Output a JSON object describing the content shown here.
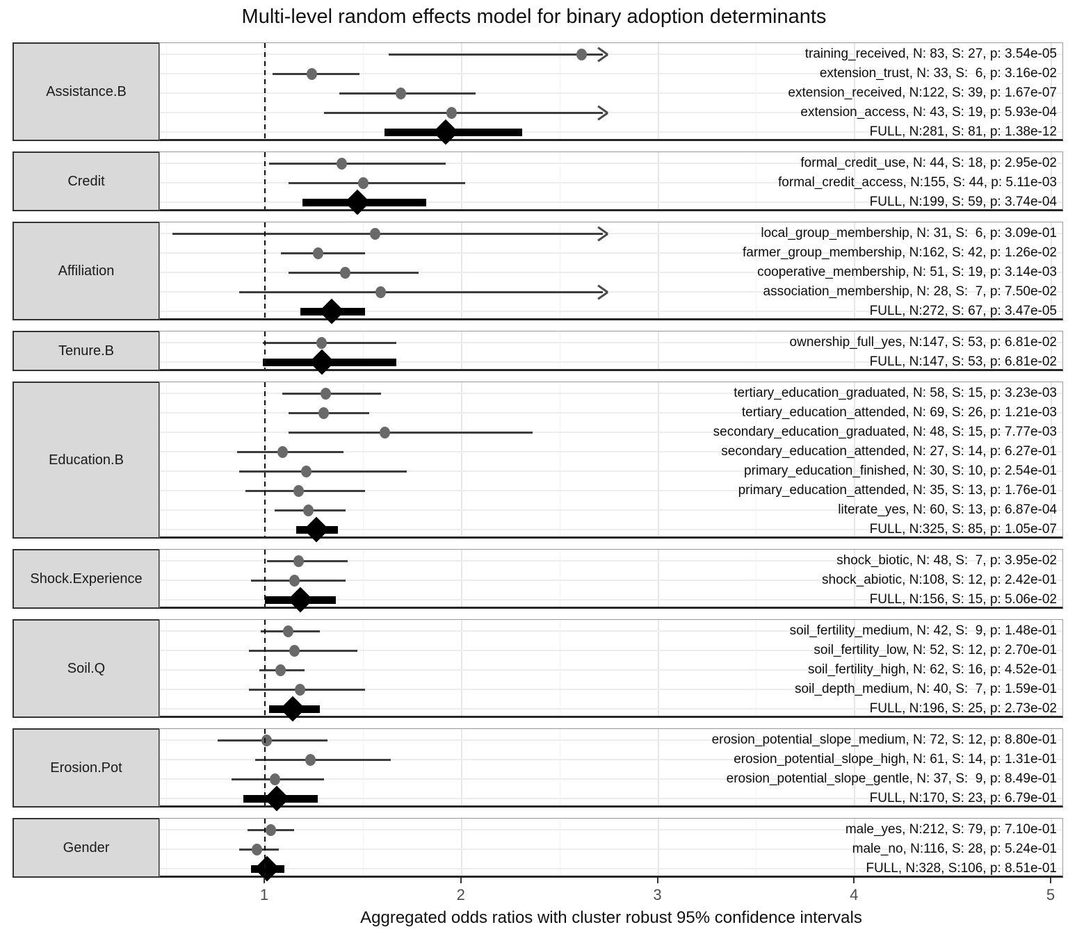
{
  "title": "Multi-level random effects model for binary adoption determinants",
  "xlabel": "Aggregated odds ratios with cluster robust 95% confidence intervals",
  "colors": {
    "point": "#696969",
    "ci_line": "#3d3d3d",
    "summary": "#000000",
    "strip_bg": "#d9d9d9",
    "grid": "#e7e7e7",
    "axis_text": "#4d4d4d"
  },
  "chart_data": {
    "type": "forest",
    "x_axis": {
      "ticks": [
        "1",
        "2",
        "3",
        "4",
        "5"
      ],
      "tick_values": [
        1,
        2,
        3,
        4,
        5
      ],
      "range": [
        0.47,
        5.06
      ],
      "reference_line": 1
    },
    "legend": "none",
    "grid": "on",
    "panels": [
      {
        "label": "Assistance.B",
        "rows": [
          {
            "label": "training_received, N: 83, S: 27, p: 3.54e-05",
            "or": 2.61,
            "lo": 1.63,
            "hi": 2.74,
            "arrow": true,
            "full": false
          },
          {
            "label": "extension_trust, N: 33, S:  6, p: 3.16e-02",
            "or": 1.24,
            "lo": 1.04,
            "hi": 1.48,
            "arrow": false,
            "full": false
          },
          {
            "label": "extension_received, N:122, S: 39, p: 1.67e-07",
            "or": 1.69,
            "lo": 1.38,
            "hi": 2.07,
            "arrow": false,
            "full": false
          },
          {
            "label": "extension_access, N: 43, S: 19, p: 5.93e-04",
            "or": 1.95,
            "lo": 1.3,
            "hi": 2.74,
            "arrow": true,
            "full": false
          },
          {
            "label": "FULL, N:281, S: 81, p: 1.38e-12",
            "or": 1.92,
            "lo": 1.61,
            "hi": 2.31,
            "arrow": false,
            "full": true
          }
        ]
      },
      {
        "label": "Credit",
        "rows": [
          {
            "label": "formal_credit_use, N: 44, S: 18, p: 2.95e-02",
            "or": 1.39,
            "lo": 1.02,
            "hi": 1.92,
            "arrow": false,
            "full": false
          },
          {
            "label": "formal_credit_access, N:155, S: 44, p: 5.11e-03",
            "or": 1.5,
            "lo": 1.12,
            "hi": 2.02,
            "arrow": false,
            "full": false
          },
          {
            "label": "FULL, N:199, S: 59, p: 3.74e-04",
            "or": 1.47,
            "lo": 1.19,
            "hi": 1.82,
            "arrow": false,
            "full": true
          }
        ]
      },
      {
        "label": "Affiliation",
        "rows": [
          {
            "label": "local_group_membership, N: 31, S:  6, p: 3.09e-01",
            "or": 1.56,
            "lo": 0.53,
            "hi": 2.74,
            "arrow": true,
            "full": false
          },
          {
            "label": "farmer_group_membership, N:162, S: 42, p: 1.26e-02",
            "or": 1.27,
            "lo": 1.08,
            "hi": 1.51,
            "arrow": false,
            "full": false
          },
          {
            "label": "cooperative_membership, N: 51, S: 19, p: 3.14e-03",
            "or": 1.41,
            "lo": 1.12,
            "hi": 1.78,
            "arrow": false,
            "full": false
          },
          {
            "label": "association_membership, N: 28, S:  7, p: 7.50e-02",
            "or": 1.59,
            "lo": 0.87,
            "hi": 2.74,
            "arrow": true,
            "full": false
          },
          {
            "label": "FULL, N:272, S: 67, p: 3.47e-05",
            "or": 1.34,
            "lo": 1.18,
            "hi": 1.51,
            "arrow": false,
            "full": true
          }
        ]
      },
      {
        "label": "Tenure.B",
        "rows": [
          {
            "label": "ownership_full_yes, N:147, S: 53, p: 6.81e-02",
            "or": 1.29,
            "lo": 0.99,
            "hi": 1.67,
            "arrow": false,
            "full": false
          },
          {
            "label": "FULL, N:147, S: 53, p: 6.81e-02",
            "or": 1.29,
            "lo": 0.99,
            "hi": 1.67,
            "arrow": false,
            "full": true
          }
        ]
      },
      {
        "label": "Education.B",
        "rows": [
          {
            "label": "tertiary_education_graduated, N: 58, S: 15, p: 3.23e-03",
            "or": 1.31,
            "lo": 1.09,
            "hi": 1.59,
            "arrow": false,
            "full": false
          },
          {
            "label": "tertiary_education_attended, N: 69, S: 26, p: 1.21e-03",
            "or": 1.3,
            "lo": 1.12,
            "hi": 1.53,
            "arrow": false,
            "full": false
          },
          {
            "label": "secondary_education_graduated, N: 48, S: 15, p: 7.77e-03",
            "or": 1.61,
            "lo": 1.12,
            "hi": 2.36,
            "arrow": false,
            "full": false
          },
          {
            "label": "secondary_education_attended, N: 27, S: 14, p: 6.27e-01",
            "or": 1.09,
            "lo": 0.86,
            "hi": 1.4,
            "arrow": false,
            "full": false
          },
          {
            "label": "primary_education_finished, N: 30, S: 10, p: 2.54e-01",
            "or": 1.21,
            "lo": 0.87,
            "hi": 1.72,
            "arrow": false,
            "full": false
          },
          {
            "label": "primary_education_attended, N: 35, S: 13, p: 1.76e-01",
            "or": 1.17,
            "lo": 0.9,
            "hi": 1.51,
            "arrow": false,
            "full": false
          },
          {
            "label": "literate_yes, N: 60, S: 13, p: 6.87e-04",
            "or": 1.22,
            "lo": 1.05,
            "hi": 1.41,
            "arrow": false,
            "full": false
          },
          {
            "label": "FULL, N:325, S: 85, p: 1.05e-07",
            "or": 1.26,
            "lo": 1.16,
            "hi": 1.37,
            "arrow": false,
            "full": true
          }
        ]
      },
      {
        "label": "Shock.Experience",
        "rows": [
          {
            "label": "shock_biotic, N: 48, S:  7, p: 3.95e-02",
            "or": 1.17,
            "lo": 1.01,
            "hi": 1.42,
            "arrow": false,
            "full": false
          },
          {
            "label": "shock_abiotic, N:108, S: 12, p: 2.42e-01",
            "or": 1.15,
            "lo": 0.93,
            "hi": 1.41,
            "arrow": false,
            "full": false
          },
          {
            "label": "FULL, N:156, S: 15, p: 5.06e-02",
            "or": 1.18,
            "lo": 1.0,
            "hi": 1.36,
            "arrow": false,
            "full": true
          }
        ]
      },
      {
        "label": "Soil.Q",
        "rows": [
          {
            "label": "soil_fertility_medium, N: 42, S:  9, p: 1.48e-01",
            "or": 1.12,
            "lo": 0.98,
            "hi": 1.28,
            "arrow": false,
            "full": false
          },
          {
            "label": "soil_fertility_low, N: 52, S: 12, p: 2.70e-01",
            "or": 1.15,
            "lo": 0.92,
            "hi": 1.47,
            "arrow": false,
            "full": false
          },
          {
            "label": "soil_fertility_high, N: 62, S: 16, p: 4.52e-01",
            "or": 1.08,
            "lo": 0.97,
            "hi": 1.2,
            "arrow": false,
            "full": false
          },
          {
            "label": "soil_depth_medium, N: 40, S:  7, p: 1.59e-01",
            "or": 1.18,
            "lo": 0.92,
            "hi": 1.51,
            "arrow": false,
            "full": false
          },
          {
            "label": "FULL, N:196, S: 25, p: 2.73e-02",
            "or": 1.14,
            "lo": 1.02,
            "hi": 1.28,
            "arrow": false,
            "full": true
          }
        ]
      },
      {
        "label": "Erosion.Pot",
        "rows": [
          {
            "label": "erosion_potential_slope_medium, N: 72, S: 12, p: 8.80e-01",
            "or": 1.01,
            "lo": 0.76,
            "hi": 1.32,
            "arrow": false,
            "full": false
          },
          {
            "label": "erosion_potential_slope_high, N: 61, S: 14, p: 1.31e-01",
            "or": 1.23,
            "lo": 0.95,
            "hi": 1.64,
            "arrow": false,
            "full": false
          },
          {
            "label": "erosion_potential_slope_gentle, N: 37, S:  9, p: 8.49e-01",
            "or": 1.05,
            "lo": 0.83,
            "hi": 1.3,
            "arrow": false,
            "full": false
          },
          {
            "label": "FULL, N:170, S: 23, p: 6.79e-01",
            "or": 1.06,
            "lo": 0.89,
            "hi": 1.27,
            "arrow": false,
            "full": true
          }
        ]
      },
      {
        "label": "Gender",
        "rows": [
          {
            "label": "male_yes, N:212, S: 79, p: 7.10e-01",
            "or": 1.03,
            "lo": 0.91,
            "hi": 1.15,
            "arrow": false,
            "full": false
          },
          {
            "label": "male_no, N:116, S: 28, p: 5.24e-01",
            "or": 0.96,
            "lo": 0.87,
            "hi": 1.07,
            "arrow": false,
            "full": false
          },
          {
            "label": "FULL, N:328, S:106, p: 8.51e-01",
            "or": 1.01,
            "lo": 0.93,
            "hi": 1.1,
            "arrow": false,
            "full": true
          }
        ]
      }
    ]
  }
}
